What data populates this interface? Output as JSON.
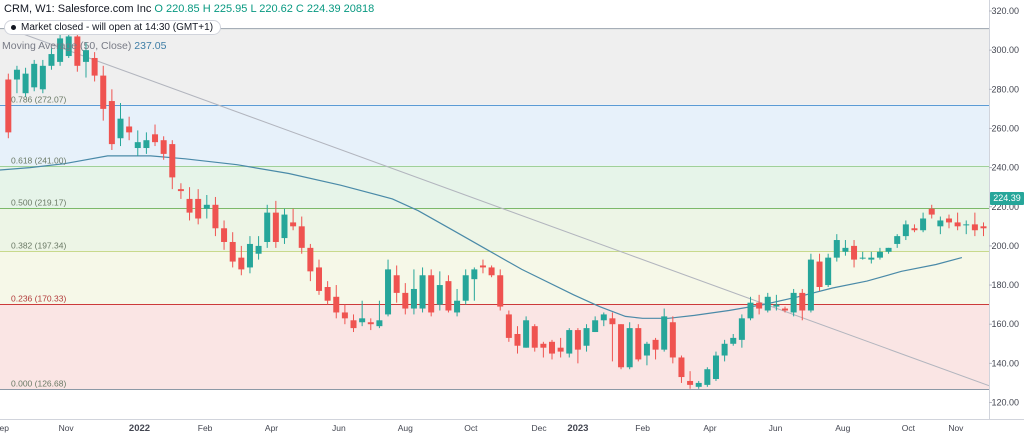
{
  "header": {
    "symbol_label": "CRM, W1: Salesforce.com Inc",
    "open": "O 220.85",
    "high": "H 225.95",
    "low": "L 220.62",
    "close": "C 224.39",
    "volume": "20818",
    "market_status": "Market closed - will open at 14:30 (GMT+1)",
    "indicator_label": "Moving Average (50, Close)",
    "indicator_value": "237.05"
  },
  "colors": {
    "up": "#26a69a",
    "down": "#ef5350",
    "ma": "#4a8aa8",
    "trendline": "#b2b5be",
    "price_tag": "#26a69a"
  },
  "chart_data": {
    "type": "candlestick",
    "title": "CRM, W1: Salesforce.com Inc",
    "y_axis": {
      "side": "right",
      "ylim": [
        120,
        320
      ],
      "ticks": [
        120,
        140,
        160,
        180,
        200,
        220,
        240,
        260,
        280,
        300,
        320
      ]
    },
    "x_axis_labels": [
      "Sep",
      "Nov",
      "2022",
      "Feb",
      "Apr",
      "Jun",
      "Aug",
      "Oct",
      "Dec",
      "2023",
      "Feb",
      "Apr",
      "Jun",
      "Aug",
      "Oct",
      "Nov"
    ],
    "last_price": "224.39",
    "fibonacci": {
      "high": 311,
      "levels": [
        {
          "label": "0.786 (272.07)",
          "price": 272.07,
          "color": "#5b9bd5"
        },
        {
          "label": "0.618 (241.00)",
          "price": 241.0,
          "color": "#9fd09a"
        },
        {
          "label": "0.500 (219.17)",
          "price": 219.17,
          "color": "#7cb96a"
        },
        {
          "label": "0.382 (197.34)",
          "price": 197.34,
          "color": "#c8d98c"
        },
        {
          "label": "0.236 (170.33)",
          "price": 170.33,
          "color": "#cc3a3a"
        },
        {
          "label": "0.000 (126.68)",
          "price": 126.68,
          "color": "#8c99a6"
        }
      ],
      "zones": [
        {
          "from": 311,
          "to": 272.07,
          "color": "#efefef"
        },
        {
          "from": 272.07,
          "to": 241.0,
          "color": "#e7f1fa"
        },
        {
          "from": 241.0,
          "to": 219.17,
          "color": "#e6f4e9"
        },
        {
          "from": 219.17,
          "to": 197.34,
          "color": "#edf5e6"
        },
        {
          "from": 197.34,
          "to": 170.33,
          "color": "#f6f8e8"
        },
        {
          "from": 170.33,
          "to": 126.68,
          "color": "#fae5e4"
        }
      ]
    },
    "trendline": {
      "from": {
        "week": 0.5,
        "price": 311
      },
      "to": {
        "week": 114.5,
        "price": 128
      }
    },
    "moving_average": {
      "name": "Moving Average (50, Close)",
      "points": [
        [
          -7,
          236
        ],
        [
          -4,
          237.5
        ],
        [
          3,
          240
        ],
        [
          7,
          242
        ],
        [
          12,
          246
        ],
        [
          17,
          246
        ],
        [
          21,
          244.5
        ],
        [
          27,
          241.5
        ],
        [
          33,
          237
        ],
        [
          39,
          231
        ],
        [
          45,
          224
        ],
        [
          48,
          218
        ],
        [
          52,
          208
        ],
        [
          56,
          198
        ],
        [
          60,
          188
        ],
        [
          66,
          175
        ],
        [
          69,
          169
        ],
        [
          72,
          164
        ],
        [
          74,
          163
        ],
        [
          77,
          163
        ],
        [
          80,
          164.5
        ],
        [
          84,
          167
        ],
        [
          88,
          170
        ],
        [
          92,
          174
        ],
        [
          96,
          178.5
        ],
        [
          100,
          182
        ],
        [
          104,
          187
        ],
        [
          108,
          190.5
        ],
        [
          111,
          194
        ]
      ]
    },
    "candles": [
      [
        285,
        258,
        288,
        255
      ],
      [
        285,
        290,
        292,
        278
      ],
      [
        278,
        288,
        291,
        276
      ],
      [
        281,
        293,
        295,
        279
      ],
      [
        280,
        292,
        295,
        278
      ],
      [
        292,
        298,
        301,
        290
      ],
      [
        294,
        306,
        309,
        292
      ],
      [
        297,
        307,
        310,
        296
      ],
      [
        307,
        292,
        311,
        289
      ],
      [
        294,
        300,
        304,
        286
      ],
      [
        296,
        287,
        299,
        284
      ],
      [
        287,
        270,
        292,
        264
      ],
      [
        274,
        252,
        280,
        249
      ],
      [
        255,
        265,
        273,
        251
      ],
      [
        261,
        258,
        266,
        254
      ],
      [
        250,
        253,
        259,
        246
      ],
      [
        250,
        254,
        258,
        247
      ],
      [
        257,
        253,
        262,
        251
      ],
      [
        254,
        247,
        256,
        244
      ],
      [
        252,
        235,
        254,
        229
      ],
      [
        229,
        228,
        232,
        224
      ],
      [
        224,
        217,
        230,
        213
      ],
      [
        224,
        214,
        229,
        211
      ],
      [
        219,
        221,
        226,
        214
      ],
      [
        221,
        209,
        225,
        205
      ],
      [
        209,
        202,
        213,
        198
      ],
      [
        202,
        192,
        207,
        189
      ],
      [
        194,
        188,
        200,
        185
      ],
      [
        189,
        201,
        205,
        186
      ],
      [
        196,
        200,
        205,
        193
      ],
      [
        202,
        217,
        221,
        199
      ],
      [
        217,
        202,
        223,
        199
      ],
      [
        204,
        216,
        219,
        201
      ],
      [
        212,
        210,
        219,
        208
      ],
      [
        210,
        199,
        215,
        196
      ],
      [
        199,
        187,
        201,
        182
      ],
      [
        189,
        177,
        193,
        175
      ],
      [
        179,
        172,
        182,
        170
      ],
      [
        174,
        166,
        180,
        163
      ],
      [
        166,
        163,
        170,
        160
      ],
      [
        162,
        158,
        165,
        156
      ],
      [
        161,
        163,
        172,
        159
      ],
      [
        161,
        160,
        163,
        157
      ],
      [
        159,
        162,
        172,
        158
      ],
      [
        165,
        188,
        193,
        164
      ],
      [
        185,
        176,
        190,
        171
      ],
      [
        176,
        168,
        181,
        165
      ],
      [
        168,
        178,
        188,
        165
      ],
      [
        168,
        185,
        189,
        166
      ],
      [
        185,
        166,
        188,
        164
      ],
      [
        170,
        180,
        187,
        167
      ],
      [
        182,
        167,
        185,
        166
      ],
      [
        166,
        172,
        178,
        164
      ],
      [
        172,
        185,
        188,
        170
      ],
      [
        183,
        188,
        189,
        172
      ],
      [
        190,
        189,
        193,
        186
      ],
      [
        189,
        185,
        190,
        184
      ],
      [
        185,
        169,
        188,
        167
      ],
      [
        165,
        153,
        167,
        151
      ],
      [
        155,
        149,
        159,
        145
      ],
      [
        148,
        162,
        164,
        148
      ],
      [
        159,
        148,
        160,
        146
      ],
      [
        150,
        148,
        151,
        143
      ],
      [
        151,
        145,
        152,
        142
      ],
      [
        148,
        146,
        153,
        143
      ],
      [
        145,
        157,
        158,
        143
      ],
      [
        157,
        147,
        158,
        140
      ],
      [
        149,
        158,
        160,
        146
      ],
      [
        156,
        162,
        164,
        156
      ],
      [
        162,
        165,
        166,
        159
      ],
      [
        163,
        160,
        166,
        141
      ],
      [
        160,
        138,
        160,
        137
      ],
      [
        138,
        158,
        161,
        137
      ],
      [
        158,
        142,
        160,
        141
      ],
      [
        144,
        150,
        151,
        139
      ],
      [
        152,
        147,
        153,
        142
      ],
      [
        147,
        164,
        168,
        146
      ],
      [
        161,
        143,
        164,
        140
      ],
      [
        143,
        133,
        144,
        130
      ],
      [
        131,
        129,
        136,
        127
      ],
      [
        128,
        130,
        131,
        127
      ],
      [
        129,
        137,
        138,
        128
      ],
      [
        132,
        144,
        146,
        131
      ],
      [
        144,
        150,
        152,
        141
      ],
      [
        150,
        153,
        155,
        149
      ],
      [
        152,
        163,
        165,
        148
      ],
      [
        163,
        171,
        174,
        162
      ],
      [
        171,
        168,
        175,
        165
      ],
      [
        167,
        174,
        176,
        166
      ],
      [
        169,
        170,
        175,
        167
      ],
      [
        168,
        167,
        169,
        166
      ],
      [
        166,
        176,
        178,
        164
      ],
      [
        176,
        167,
        178,
        162
      ],
      [
        167,
        193,
        196,
        166
      ],
      [
        192,
        179,
        196,
        177
      ],
      [
        180,
        194,
        196,
        179
      ],
      [
        194,
        203,
        206,
        192
      ],
      [
        197,
        199,
        203,
        195
      ],
      [
        200,
        193,
        203,
        189
      ],
      [
        194,
        194,
        197,
        193
      ],
      [
        193,
        194,
        197,
        191
      ],
      [
        194,
        197,
        199,
        193
      ],
      [
        197,
        199,
        199,
        196
      ],
      [
        201,
        205,
        206,
        199
      ],
      [
        205,
        211,
        213,
        203
      ],
      [
        209,
        208,
        211,
        207
      ],
      [
        208,
        214,
        217,
        207
      ],
      [
        219,
        216,
        221,
        214
      ],
      [
        210,
        213,
        215,
        206
      ],
      [
        214,
        212,
        216,
        209
      ],
      [
        212,
        210,
        217,
        208
      ],
      [
        211,
        211,
        213,
        206
      ],
      [
        211,
        208,
        217,
        205
      ],
      [
        210,
        209,
        212,
        205
      ],
      [
        209,
        232,
        236,
        209
      ],
      [
        230,
        224,
        231,
        220
      ],
      [
        224,
        222,
        228,
        220
      ],
      [
        219,
        220,
        223,
        216
      ],
      [
        219,
        208,
        223,
        206
      ],
      [
        210,
        205,
        215,
        201
      ],
      [
        205,
        201,
        208,
        199
      ],
      [
        201,
        207,
        210,
        201
      ],
      [
        205,
        211,
        217,
        205
      ],
      [
        208,
        203,
        210,
        200
      ],
      [
        203,
        221,
        229,
        203
      ],
      [
        219,
        215,
        223,
        213
      ],
      [
        216,
        222,
        227,
        214
      ],
      [
        221,
        207,
        224,
        206
      ],
      [
        209,
        201,
        212,
        199
      ],
      [
        201,
        198,
        207,
        197
      ],
      [
        198,
        204,
        205,
        196
      ],
      [
        200,
        202,
        207,
        199
      ],
      [
        201,
        199,
        204,
        196
      ],
      [
        199,
        193,
        203,
        192
      ],
      [
        196,
        209,
        212,
        196
      ],
      [
        209,
        212,
        215,
        207
      ],
      [
        210,
        221,
        222,
        209
      ],
      [
        220.85,
        224.39,
        225.95,
        220.62
      ]
    ]
  }
}
